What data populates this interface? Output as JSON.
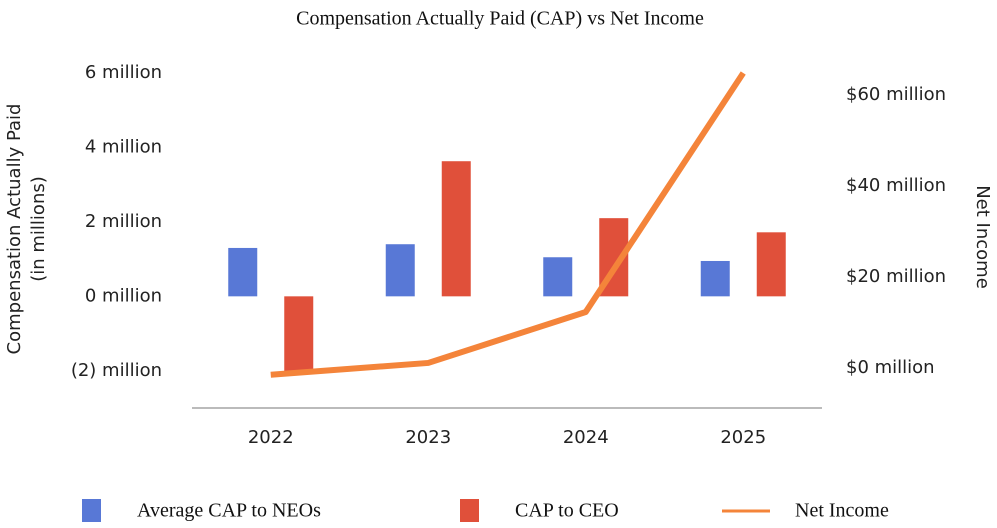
{
  "chart_data": {
    "type": "bar_line",
    "title": "Compensation Actually Paid (CAP) vs Net Income",
    "ylabel": "Compensation Actually Paid (in millions)",
    "y2label": "Net Income",
    "categories": [
      "2022",
      "2023",
      "2024",
      "2025"
    ],
    "series": [
      {
        "name": "Average CAP to NEOs",
        "color": "#5878d6",
        "type": "bar",
        "values": [
          1.3,
          1.4,
          1.05,
          0.95
        ]
      },
      {
        "name": "CAP to CEO",
        "color": "#e0503a",
        "type": "bar",
        "values": [
          -2.05,
          3.63,
          2.1,
          1.72
        ]
      },
      {
        "name": "Net Income",
        "color": "#f4843a",
        "type": "line",
        "axis": "y2",
        "values": [
          -1.5,
          1.1,
          12.3,
          64.8
        ]
      }
    ],
    "ylim": [
      -3,
      6
    ],
    "yticks": [
      {
        "value": -2,
        "label": "(2) million"
      },
      {
        "value": 0,
        "label": "0 million"
      },
      {
        "value": 2,
        "label": "2 million"
      },
      {
        "value": 4,
        "label": "4 million"
      },
      {
        "value": 6,
        "label": "6 million"
      }
    ],
    "y2lim": [
      -8.8,
      64.8
    ],
    "y2ticks": [
      {
        "value": 0,
        "label": "$0 million"
      },
      {
        "value": 20,
        "label": "$20 million"
      },
      {
        "value": 40,
        "label": "$40 million"
      },
      {
        "value": 60,
        "label": "$60 million"
      }
    ],
    "legend": "bottom"
  }
}
